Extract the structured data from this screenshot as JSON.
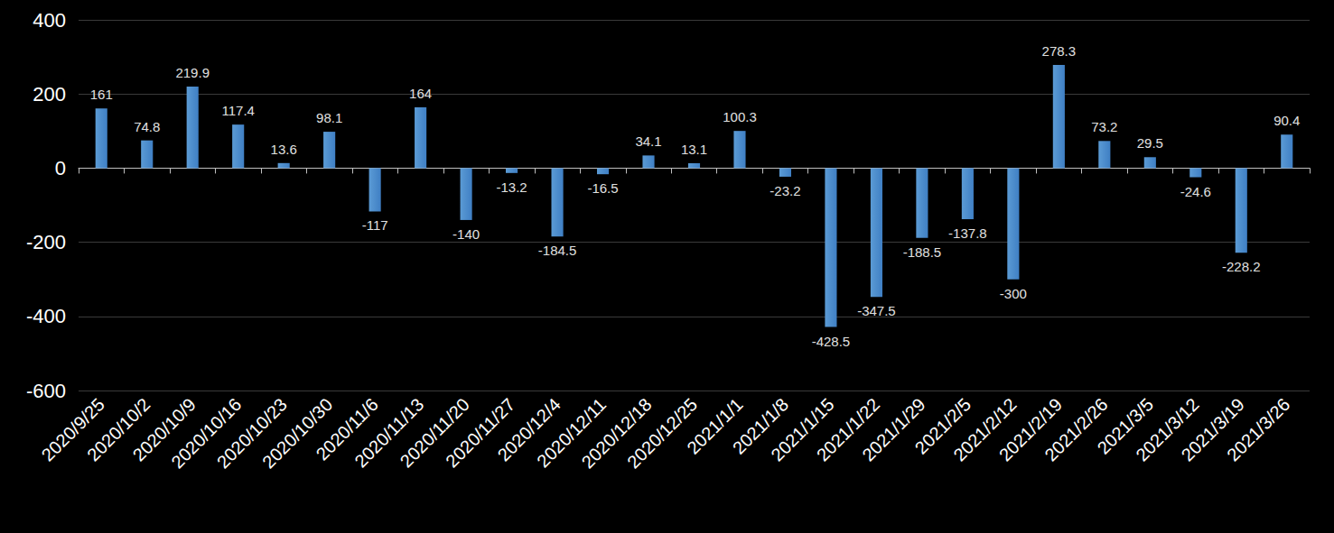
{
  "chart_data": {
    "type": "bar",
    "categories": [
      "2020/9/25",
      "2020/10/2",
      "2020/10/9",
      "2020/10/16",
      "2020/10/23",
      "2020/10/30",
      "2020/11/6",
      "2020/11/13",
      "2020/11/20",
      "2020/11/27",
      "2020/12/4",
      "2020/12/11",
      "2020/12/18",
      "2020/12/25",
      "2021/1/1",
      "2021/1/8",
      "2021/1/15",
      "2021/1/22",
      "2021/1/29",
      "2021/2/5",
      "2021/2/12",
      "2021/2/19",
      "2021/2/26",
      "2021/3/5",
      "2021/3/12",
      "2021/3/19",
      "2021/3/26"
    ],
    "values": [
      161,
      74.8,
      219.9,
      117.4,
      13.6,
      98.1,
      -117,
      164,
      -140,
      -13.2,
      -184.5,
      -16.5,
      34.1,
      13.1,
      100.3,
      -23.2,
      -428.5,
      -347.5,
      -188.5,
      -137.8,
      -300,
      278.3,
      73.2,
      29.5,
      -24.6,
      -228.2,
      90.4
    ],
    "color": "#5b9bd5",
    "ylim": [
      -600,
      400
    ],
    "yticks": [
      -600,
      -400,
      -200,
      0,
      200,
      400
    ],
    "grid": true,
    "data_labels": true
  }
}
